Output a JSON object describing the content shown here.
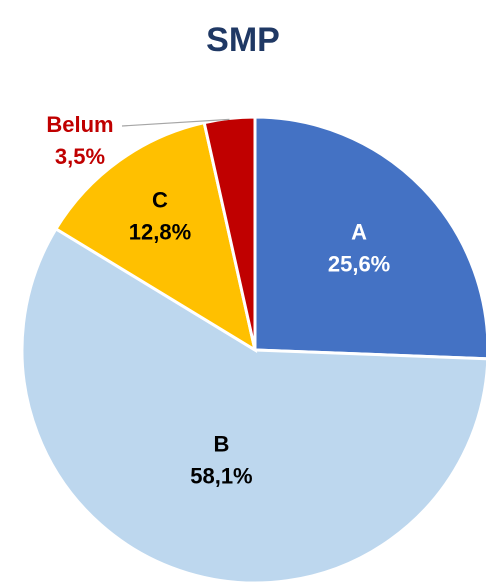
{
  "chart_data": {
    "type": "pie",
    "title": "SMP",
    "categories": [
      "A",
      "B",
      "C",
      "Belum"
    ],
    "values": [
      25.6,
      58.1,
      12.8,
      3.5
    ],
    "value_labels": [
      "25,6%",
      "58,1%",
      "12,8%",
      "3,5%"
    ],
    "colors": [
      "#4472c4",
      "#bdd7ee",
      "#ffc000",
      "#c00000"
    ]
  }
}
